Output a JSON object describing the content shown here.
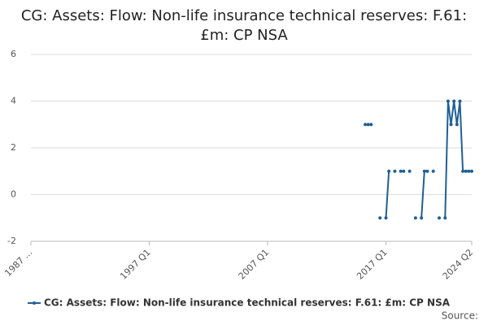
{
  "chart_data": {
    "type": "line",
    "title": "CG: Assets: Flow: Non-life insurance technical reserves: F.61: £m: CP NSA",
    "source": "Source:",
    "categories": [
      "1987 ...",
      null,
      null,
      null,
      null,
      null,
      null,
      null,
      null,
      null,
      null,
      null,
      null,
      null,
      null,
      null,
      null,
      null,
      null,
      null,
      null,
      null,
      null,
      null,
      null,
      null,
      null,
      null,
      null,
      null,
      null,
      null,
      null,
      null,
      null,
      null,
      null,
      null,
      null,
      null,
      "1997 Q1",
      null,
      null,
      null,
      null,
      null,
      null,
      null,
      null,
      null,
      null,
      null,
      null,
      null,
      null,
      null,
      null,
      null,
      null,
      null,
      null,
      null,
      null,
      null,
      null,
      null,
      null,
      null,
      null,
      null,
      null,
      null,
      null,
      null,
      null,
      null,
      null,
      null,
      null,
      null,
      "2007 Q1",
      null,
      null,
      null,
      null,
      null,
      null,
      null,
      null,
      null,
      null,
      null,
      null,
      null,
      null,
      null,
      null,
      null,
      null,
      null,
      null,
      null,
      null,
      null,
      null,
      null,
      null,
      null,
      null,
      null,
      null,
      null,
      null,
      null,
      null,
      null,
      null,
      null,
      null,
      null,
      "2017 Q1",
      null,
      null,
      null,
      null,
      null,
      null,
      null,
      null,
      null,
      null,
      null,
      null,
      null,
      null,
      null,
      null,
      null,
      null,
      null,
      null,
      null,
      null,
      null,
      null,
      null,
      null,
      null,
      null,
      "2024 Q2"
    ],
    "series": [
      {
        "name": "CG: Assets: Flow: Non-life insurance technical reserves: F.61: £m: CP NSA",
        "color": "#206095",
        "values": [
          null,
          null,
          null,
          null,
          null,
          null,
          null,
          null,
          null,
          null,
          null,
          null,
          null,
          null,
          null,
          null,
          null,
          null,
          null,
          null,
          null,
          null,
          null,
          null,
          null,
          null,
          null,
          null,
          null,
          null,
          null,
          null,
          null,
          null,
          null,
          null,
          null,
          null,
          null,
          null,
          null,
          null,
          null,
          null,
          null,
          null,
          null,
          null,
          null,
          null,
          null,
          null,
          null,
          null,
          null,
          null,
          null,
          null,
          null,
          null,
          null,
          null,
          null,
          null,
          null,
          null,
          null,
          null,
          null,
          null,
          null,
          null,
          null,
          null,
          null,
          null,
          null,
          null,
          null,
          null,
          null,
          null,
          null,
          null,
          null,
          null,
          null,
          null,
          null,
          null,
          null,
          null,
          null,
          null,
          null,
          null,
          null,
          null,
          null,
          null,
          null,
          null,
          null,
          null,
          null,
          null,
          null,
          null,
          null,
          null,
          null,
          null,
          null,
          3,
          3,
          3,
          null,
          null,
          -1,
          null,
          -1,
          1,
          null,
          1,
          null,
          1,
          1,
          null,
          1,
          null,
          -1,
          null,
          -1,
          1,
          1,
          null,
          1,
          null,
          -1,
          null,
          -1,
          4,
          3,
          4,
          3,
          4,
          1,
          1,
          1,
          1
        ]
      }
    ],
    "ylim": [
      -2,
      6
    ],
    "yticks": [
      -2,
      0,
      2,
      4,
      6
    ],
    "grid": true,
    "legend": "bottom"
  }
}
